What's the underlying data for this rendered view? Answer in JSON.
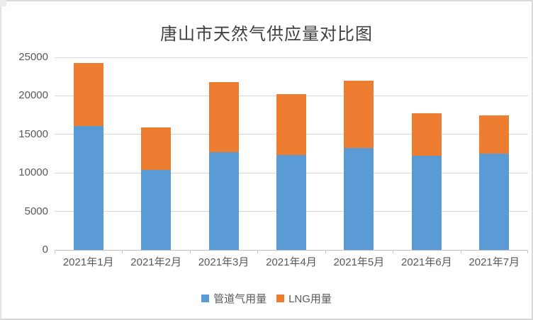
{
  "page": {
    "background": "#ffffff",
    "border_color": "#d9d9d9"
  },
  "chart_data": {
    "type": "bar",
    "stacked": true,
    "title": "唐山市天然气供应量对比图",
    "categories": [
      "2021年1月",
      "2021年2月",
      "2021年3月",
      "2021年4月",
      "2021年5月",
      "2021年6月",
      "2021年7月"
    ],
    "series": [
      {
        "name": "管道气用量",
        "color": "#5B9BD5",
        "values": [
          16100,
          10400,
          12700,
          12300,
          13200,
          12200,
          12500
        ]
      },
      {
        "name": "LNG用量",
        "color": "#ED7D31",
        "values": [
          8200,
          5500,
          9100,
          7900,
          8800,
          5500,
          5000
        ]
      }
    ],
    "totals": [
      24300,
      15900,
      21800,
      20200,
      22000,
      17700,
      17500
    ],
    "xlabel": "",
    "ylabel": "",
    "ylim": [
      0,
      25000
    ],
    "y_ticks": [
      0,
      5000,
      10000,
      15000,
      20000,
      25000
    ],
    "grid": true,
    "legend_position": "bottom",
    "gridline_color": "#d9d9d9",
    "axis_line_color": "#bfbfbf",
    "tick_color": "#c9c9c9",
    "text_color": "#595959",
    "title_color": "#404040"
  }
}
